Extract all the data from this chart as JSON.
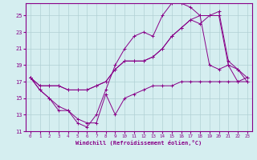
{
  "xlabel": "Windchill (Refroidissement éolien,°C)",
  "bg_color": "#d5eef0",
  "line_color": "#880088",
  "grid_color": "#b0d0d4",
  "xlim": [
    -0.5,
    23.5
  ],
  "ylim": [
    11,
    26.5
  ],
  "xticks": [
    0,
    1,
    2,
    3,
    4,
    5,
    6,
    7,
    8,
    9,
    10,
    11,
    12,
    13,
    14,
    15,
    16,
    17,
    18,
    19,
    20,
    21,
    22,
    23
  ],
  "yticks": [
    11,
    13,
    15,
    17,
    19,
    21,
    23,
    25
  ],
  "lines": [
    {
      "x": [
        0,
        1,
        2,
        3,
        4,
        5,
        6,
        7,
        8,
        9,
        10,
        11,
        12,
        13,
        14,
        15,
        16,
        17,
        18,
        19,
        20,
        21,
        22,
        23
      ],
      "y": [
        17.5,
        16.0,
        15.0,
        14.0,
        13.5,
        12.0,
        11.5,
        13.0,
        16.0,
        19.0,
        21.0,
        22.5,
        23.0,
        22.5,
        25.0,
        26.5,
        26.5,
        26.0,
        25.0,
        19.0,
        18.5,
        19.0,
        17.0,
        17.5
      ]
    },
    {
      "x": [
        0,
        1,
        2,
        3,
        4,
        5,
        6,
        7,
        8,
        9,
        10,
        11,
        12,
        13,
        14,
        15,
        16,
        17,
        18,
        19,
        20,
        21,
        22,
        23
      ],
      "y": [
        17.5,
        16.5,
        16.5,
        16.5,
        16.0,
        16.0,
        16.0,
        16.5,
        17.0,
        18.5,
        19.5,
        19.5,
        19.5,
        20.0,
        21.0,
        22.5,
        23.5,
        24.5,
        25.0,
        25.0,
        25.5,
        19.5,
        18.5,
        17.5
      ]
    },
    {
      "x": [
        0,
        1,
        2,
        3,
        4,
        5,
        6,
        7,
        8,
        9,
        10,
        11,
        12,
        13,
        14,
        15,
        16,
        17,
        18,
        19,
        20,
        21,
        22,
        23
      ],
      "y": [
        17.5,
        16.5,
        16.5,
        16.5,
        16.0,
        16.0,
        16.0,
        16.5,
        17.0,
        18.5,
        19.5,
        19.5,
        19.5,
        20.0,
        21.0,
        22.5,
        23.5,
        24.5,
        24.0,
        25.0,
        25.0,
        19.0,
        18.5,
        17.0
      ]
    },
    {
      "x": [
        0,
        1,
        2,
        3,
        4,
        5,
        6,
        7,
        8,
        9,
        10,
        11,
        12,
        13,
        14,
        15,
        16,
        17,
        18,
        19,
        20,
        21,
        22,
        23
      ],
      "y": [
        17.5,
        16.0,
        15.0,
        13.5,
        13.5,
        12.5,
        12.0,
        12.0,
        15.5,
        13.0,
        15.0,
        15.5,
        16.0,
        16.5,
        16.5,
        16.5,
        17.0,
        17.0,
        17.0,
        17.0,
        17.0,
        17.0,
        17.0,
        17.0
      ]
    }
  ]
}
